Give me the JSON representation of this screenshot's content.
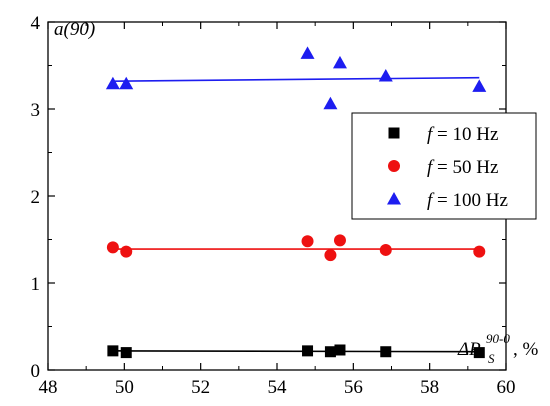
{
  "chart_data": {
    "type": "scatter",
    "ylabel": "a(90)",
    "xlabel": {
      "main": "ΔP",
      "sub": "S",
      "sup": "90-0",
      "unit": ", %"
    },
    "xlim": [
      48,
      60
    ],
    "ylim": [
      0,
      4
    ],
    "xticks": [
      48,
      50,
      52,
      54,
      56,
      58,
      60
    ],
    "yticks": [
      0,
      1,
      2,
      3,
      4
    ],
    "legend_position": "right",
    "series": [
      {
        "name": "10 Hz",
        "name_prefix": "f",
        "name_eq": " = ",
        "marker": "square",
        "color": "#000000",
        "x": [
          49.7,
          50.05,
          54.8,
          55.4,
          55.65,
          56.85,
          59.3
        ],
        "y": [
          0.22,
          0.2,
          0.22,
          0.21,
          0.23,
          0.21,
          0.2
        ],
        "fit": [
          [
            49.7,
            0.22
          ],
          [
            59.3,
            0.21
          ]
        ]
      },
      {
        "name": "50 Hz",
        "name_prefix": "f",
        "name_eq": " = ",
        "marker": "circle",
        "color": "#ee1111",
        "x": [
          49.7,
          50.05,
          54.8,
          55.4,
          55.65,
          56.85,
          59.3
        ],
        "y": [
          1.41,
          1.36,
          1.48,
          1.32,
          1.49,
          1.38,
          1.36
        ],
        "fit": [
          [
            49.7,
            1.39
          ],
          [
            59.3,
            1.39
          ]
        ]
      },
      {
        "name": "100 Hz",
        "name_prefix": "f",
        "name_eq": " = ",
        "marker": "triangle",
        "color": "#1d1df0",
        "x": [
          49.7,
          50.05,
          54.8,
          55.4,
          55.65,
          56.85,
          59.3
        ],
        "y": [
          3.29,
          3.29,
          3.64,
          3.06,
          3.53,
          3.38,
          3.26
        ],
        "fit": [
          [
            49.7,
            3.32
          ],
          [
            59.3,
            3.36
          ]
        ]
      }
    ]
  }
}
